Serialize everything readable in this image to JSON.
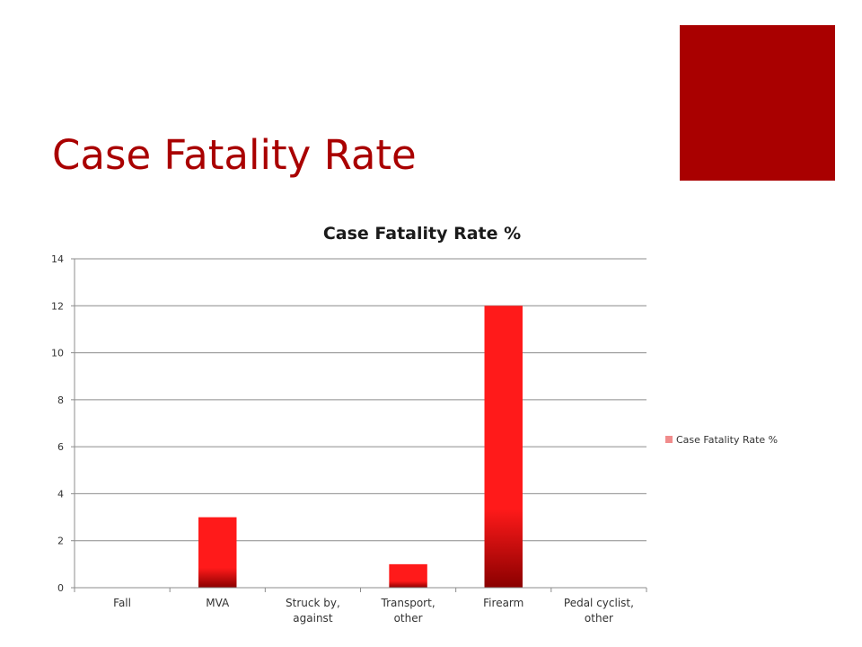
{
  "slide": {
    "title": "Case Fatality Rate",
    "accent_color": "#a90000"
  },
  "chart_data": {
    "type": "bar",
    "title": "Case Fatality Rate %",
    "categories": [
      "Fall",
      "MVA",
      "Struck by, against",
      "Transport, other",
      "Firearm",
      "Pedal cyclist, other"
    ],
    "series": [
      {
        "name": "Case Fatality Rate %",
        "values": [
          0,
          3,
          0,
          1,
          12,
          0
        ]
      }
    ],
    "ylim": [
      0,
      14
    ],
    "yticks": [
      0,
      2,
      4,
      6,
      8,
      10,
      12,
      14
    ],
    "grid": true,
    "legend_position": "right",
    "bar_color": "#ff1a1a",
    "bar_color_dark": "#8a0000",
    "legend_color": "#f08c8c"
  }
}
